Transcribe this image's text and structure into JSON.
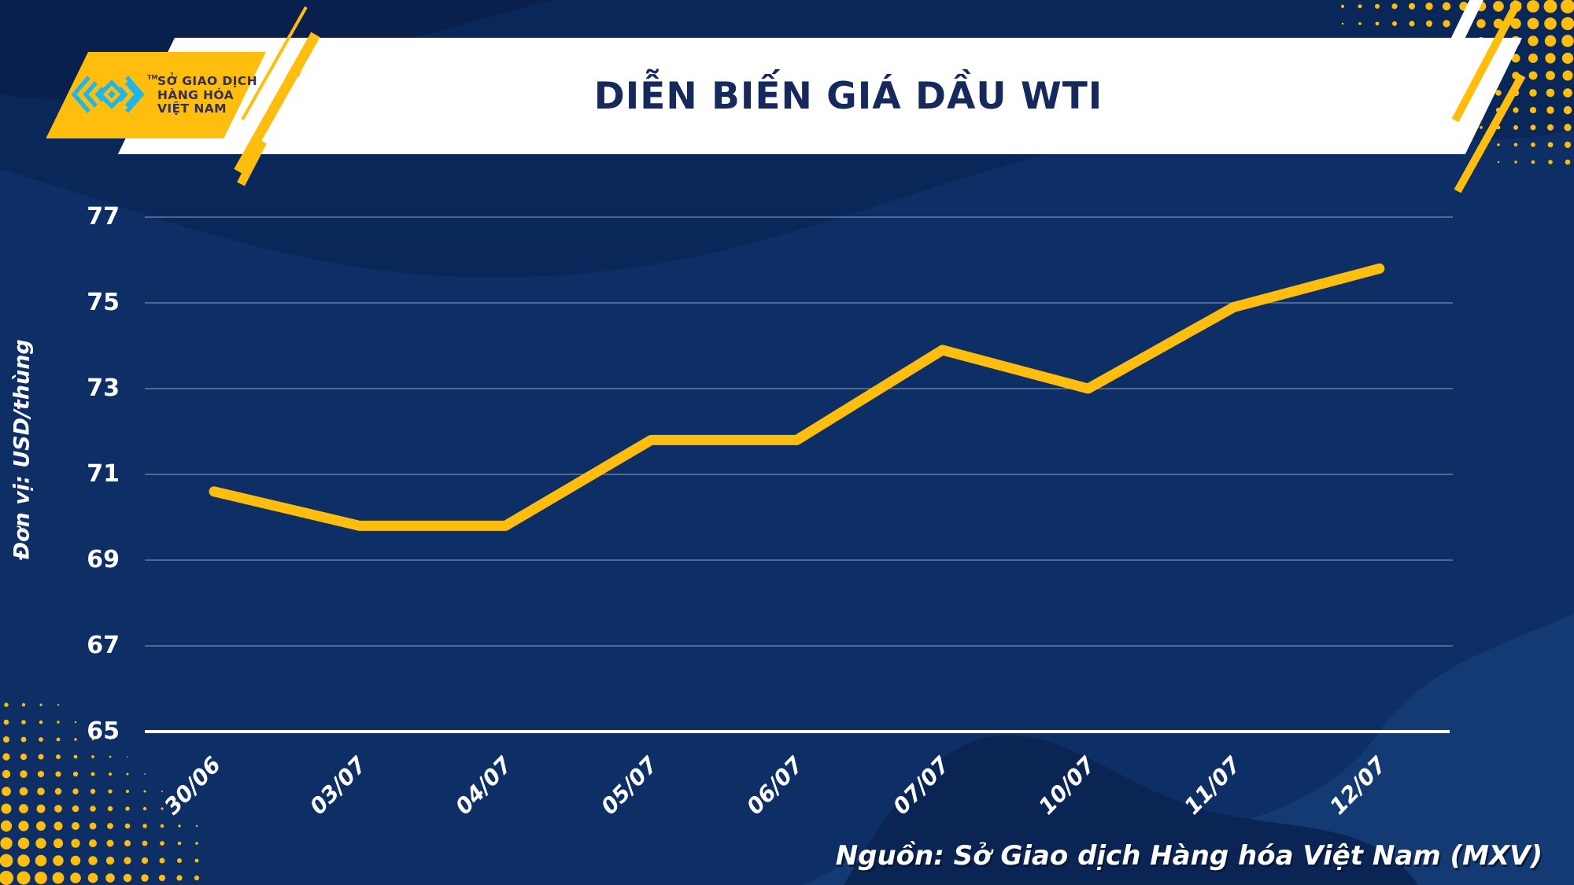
{
  "header": {
    "title": "DIỄN BIẾN GIÁ DẦU WTI",
    "logo": {
      "line1": "SỞ GIAO DỊCH",
      "line2": "HÀNG HÓA",
      "line3": "VIỆT NAM",
      "trademark": "TM"
    }
  },
  "chart_data": {
    "type": "line",
    "title": "DIỄN BIẾN GIÁ DẦU WTI",
    "categories": [
      "30/06",
      "03/07",
      "04/07",
      "05/07",
      "06/07",
      "07/07",
      "10/07",
      "11/07",
      "12/07"
    ],
    "values": [
      70.6,
      69.8,
      69.8,
      71.8,
      71.8,
      73.9,
      73.0,
      74.9,
      75.8
    ],
    "xlabel": "",
    "ylabel": "Đơn vị: USD/thùng",
    "yticks": [
      77,
      75,
      73,
      71,
      69,
      67,
      65
    ],
    "ylim": [
      65,
      78
    ],
    "grid": true,
    "legend_position": "none",
    "line_color": "#FFBE0D",
    "line_width": 13
  },
  "footer": {
    "source": "Nguồn: Sở Giao dịch Hàng hóa Việt Nam (MXV)"
  },
  "colors": {
    "background": "#0D2F66",
    "accent": "#FFBE0D",
    "icon_cyan": "#1FB7EA",
    "title_navy": "#16295C",
    "logo_text": "#332E5A",
    "wave_top": "#0A2759",
    "wave_corner": "#08204B",
    "wave_bottom_light": "#143A74",
    "wave_bottom_dark": "#0A2453",
    "baseline_white": "#FFFFFF"
  }
}
